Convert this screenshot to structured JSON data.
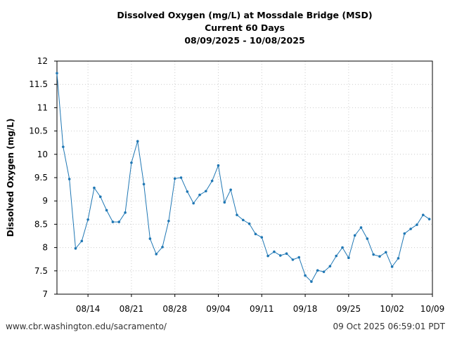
{
  "footer": {
    "source_url": "www.cbr.washington.edu/sacramento/",
    "generated": "09 Oct 2025 06:59:01 PDT"
  },
  "colors": {
    "series": "#1f77b4",
    "grid": "#cccccc",
    "axis": "#000000"
  },
  "chart_data": {
    "type": "line",
    "title": [
      "Dissolved Oxygen (mg/L) at Mossdale Bridge (MSD)",
      "Current 60 Days",
      "08/09/2025 - 10/08/2025"
    ],
    "xlabel": "",
    "ylabel": "Dissolved Oxygen (mg/L)",
    "ylim": [
      7,
      12
    ],
    "yticks": [
      7,
      7.5,
      8,
      8.5,
      9,
      9.5,
      10,
      10.5,
      11,
      11.5,
      12
    ],
    "ytick_labels": [
      "7",
      "7.5",
      "8",
      "8.5",
      "9",
      "9.5",
      "10",
      "10.5",
      "11",
      "11.5",
      "12"
    ],
    "xlim_days": [
      0,
      60.5
    ],
    "xticks": [
      {
        "day": 5,
        "label": "08/14"
      },
      {
        "day": 12,
        "label": "08/21"
      },
      {
        "day": 19,
        "label": "08/28"
      },
      {
        "day": 26,
        "label": "09/04"
      },
      {
        "day": 33,
        "label": "09/11"
      },
      {
        "day": 40,
        "label": "09/18"
      },
      {
        "day": 47,
        "label": "09/25"
      },
      {
        "day": 54,
        "label": "10/02"
      },
      {
        "day": 61,
        "label": "10/09"
      }
    ],
    "grid": true,
    "series": [
      {
        "name": "Dissolved Oxygen",
        "x": [
          0,
          1,
          2,
          3,
          4,
          5,
          6,
          7,
          8,
          9,
          10,
          11,
          12,
          13,
          14,
          15,
          16,
          17,
          18,
          19,
          20,
          21,
          22,
          23,
          24,
          25,
          26,
          27,
          28,
          29,
          30,
          31,
          32,
          33,
          34,
          35,
          36,
          37,
          38,
          39,
          40,
          41,
          42,
          43,
          44,
          45,
          46,
          47,
          48,
          49,
          50,
          51,
          52,
          53,
          54,
          55,
          56,
          57,
          58,
          59,
          60
        ],
        "y": [
          11.74,
          10.16,
          9.47,
          7.98,
          8.14,
          8.6,
          9.28,
          9.09,
          8.8,
          8.55,
          8.55,
          8.75,
          9.82,
          10.28,
          9.36,
          8.19,
          7.86,
          8.01,
          8.57,
          9.48,
          9.5,
          9.2,
          8.95,
          9.13,
          9.21,
          9.43,
          9.76,
          8.97,
          9.24,
          8.7,
          8.59,
          8.51,
          8.29,
          8.22,
          7.82,
          7.91,
          7.83,
          7.87,
          7.74,
          7.79,
          7.4,
          7.27,
          7.51,
          7.48,
          7.6,
          7.82,
          8.0,
          7.78,
          8.26,
          8.43,
          8.19,
          7.85,
          7.81,
          7.9,
          7.59,
          7.77,
          8.3,
          8.4,
          8.49,
          8.7,
          8.61
        ]
      }
    ]
  }
}
